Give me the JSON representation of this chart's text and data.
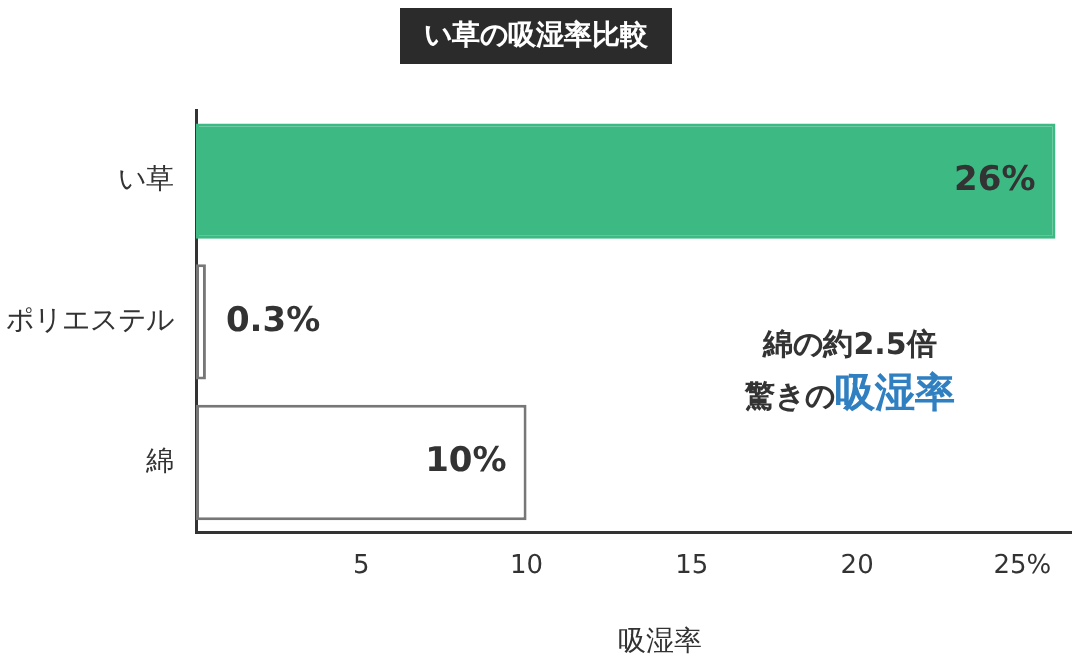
{
  "chart_data": {
    "type": "bar",
    "orientation": "horizontal",
    "title": "い草の吸湿率比較",
    "xlabel": "吸湿率",
    "categories": [
      "い草",
      "ポリエステル",
      "綿"
    ],
    "values": [
      26,
      0.3,
      10
    ],
    "colors": [
      "#3dba84",
      "#ffffff",
      "#ffffff"
    ],
    "value_labels": [
      "26%",
      "0.3%",
      "10%"
    ],
    "xlim": [
      0,
      26.5
    ],
    "xticks": [
      5,
      10,
      15,
      20,
      {
        "value": 25,
        "label": "25%"
      }
    ],
    "grid": false,
    "legend": false,
    "annotations": [
      "綿の約2.5倍",
      "驚きの",
      "吸湿率"
    ]
  }
}
